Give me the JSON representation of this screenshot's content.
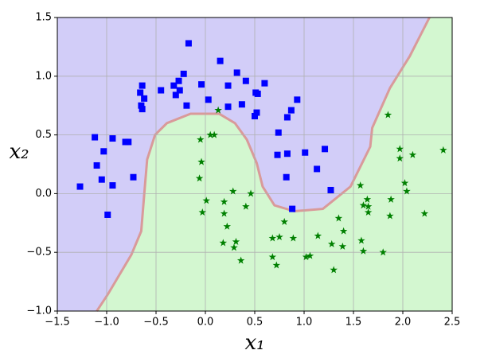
{
  "chart_data": {
    "type": "scatter",
    "xlabel": "x₁",
    "ylabel": "x₂",
    "xlim": [
      -1.5,
      2.5
    ],
    "ylim": [
      -1.0,
      1.5
    ],
    "xticks": [
      {
        "value": -1.5,
        "label": "−1.5"
      },
      {
        "value": -1.0,
        "label": "−1.0"
      },
      {
        "value": -0.5,
        "label": "−0.5"
      },
      {
        "value": 0,
        "label": "0.0"
      },
      0.5,
      {
        "value": 1.0,
        "label": "1.0"
      },
      1.5,
      {
        "value": 2.0,
        "label": "2.0"
      },
      2.5
    ],
    "yticks": [
      {
        "value": -1.0,
        "label": "−1.0"
      },
      {
        "value": -0.5,
        "label": "−0.5"
      },
      {
        "value": 0,
        "label": "0.0"
      },
      0.5,
      {
        "value": 1.0,
        "label": "1.0"
      },
      1.5
    ],
    "grid": true,
    "region_colors": [
      "#d2cdf8",
      "#d3f7d0"
    ],
    "boundary_color": "#d99a9a",
    "boundary": {
      "x": [
        -1.1,
        -0.99,
        -0.87,
        -0.75,
        -0.65,
        -0.62,
        -0.59,
        -0.51,
        -0.39,
        -0.15,
        0.14,
        0.3,
        0.42,
        0.52,
        0.58,
        0.7,
        0.9,
        1.19,
        1.47,
        1.67,
        1.69,
        1.87,
        2.07,
        2.27
      ],
      "y": [
        -1.0,
        -0.86,
        -0.69,
        -0.52,
        -0.32,
        -0.01,
        0.29,
        0.5,
        0.6,
        0.68,
        0.68,
        0.6,
        0.46,
        0.26,
        0.06,
        -0.1,
        -0.15,
        -0.13,
        0.06,
        0.4,
        0.56,
        0.9,
        1.17,
        1.5
      ]
    },
    "series": [
      {
        "marker": "square",
        "color": "#0000ff",
        "x": [
          -1.27,
          -1.12,
          -1.1,
          -1.03,
          -1.05,
          -0.99,
          -0.94,
          -0.94,
          -0.81,
          -0.78,
          -0.73,
          -0.66,
          -0.64,
          -0.62,
          -0.65,
          -0.64,
          -0.45,
          -0.32,
          -0.3,
          -0.27,
          -0.26,
          -0.22,
          -0.19,
          -0.17,
          -0.04,
          0.03,
          0.15,
          0.23,
          0.23,
          0.32,
          0.37,
          0.41,
          0.51,
          0.53,
          0.5,
          0.52,
          0.6,
          0.74,
          0.73,
          0.83,
          0.82,
          0.83,
          0.87,
          0.93,
          0.88,
          1.01,
          1.13,
          1.21,
          1.27
        ],
        "values": [
          0.06,
          0.48,
          0.24,
          0.36,
          0.12,
          -0.18,
          0.47,
          0.07,
          0.44,
          0.44,
          0.14,
          0.86,
          0.92,
          0.81,
          0.75,
          0.72,
          0.88,
          0.92,
          0.84,
          0.96,
          0.88,
          1.02,
          0.75,
          1.28,
          0.93,
          0.8,
          1.13,
          0.92,
          0.74,
          1.03,
          0.76,
          0.96,
          0.86,
          0.85,
          0.66,
          0.69,
          0.94,
          0.52,
          0.33,
          0.34,
          0.14,
          0.65,
          0.71,
          0.8,
          -0.13,
          0.35,
          0.21,
          0.38,
          0.03
        ]
      },
      {
        "marker": "star",
        "color": "#008000",
        "x": [
          0.13,
          -0.05,
          0.05,
          0.09,
          -0.04,
          -0.06,
          0.01,
          -0.03,
          0.19,
          0.19,
          0.28,
          0.22,
          0.46,
          0.41,
          0.31,
          0.18,
          0.29,
          0.36,
          0.8,
          0.75,
          0.68,
          0.89,
          0.68,
          0.72,
          1.14,
          1.02,
          1.06,
          1.35,
          1.4,
          1.28,
          1.39,
          1.3,
          1.57,
          1.64,
          1.6,
          1.65,
          1.65,
          1.58,
          1.6,
          1.8,
          1.85,
          1.97,
          1.97,
          2.1,
          1.88,
          1.87,
          2.02,
          2.04,
          2.22,
          2.41
        ],
        "values": [
          0.71,
          0.46,
          0.5,
          0.5,
          0.27,
          0.13,
          -0.06,
          -0.16,
          -0.07,
          -0.17,
          0.02,
          -0.28,
          0.0,
          -0.11,
          -0.41,
          -0.42,
          -0.46,
          -0.57,
          -0.24,
          -0.37,
          -0.38,
          -0.38,
          -0.54,
          -0.61,
          -0.36,
          -0.54,
          -0.53,
          -0.21,
          -0.32,
          -0.43,
          -0.45,
          -0.65,
          0.07,
          -0.05,
          -0.1,
          -0.11,
          -0.16,
          -0.4,
          -0.49,
          -0.5,
          0.67,
          0.38,
          0.3,
          0.33,
          -0.05,
          -0.19,
          0.09,
          0.02,
          -0.17,
          0.37
        ]
      }
    ]
  }
}
